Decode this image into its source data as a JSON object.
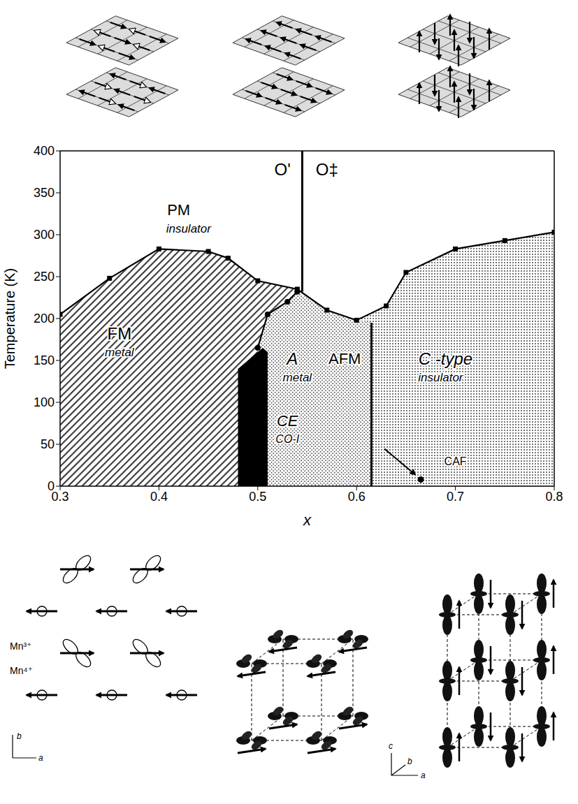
{
  "chart_data": {
    "type": "line",
    "xlabel": "x",
    "ylabel": "Temperature (K)",
    "xlim": [
      0.3,
      0.8
    ],
    "xticks": [
      0.3,
      0.4,
      0.5,
      0.6,
      0.7,
      0.8
    ],
    "ylim": [
      0,
      400
    ],
    "yticks": [
      0,
      50,
      100,
      150,
      200,
      250,
      300,
      350,
      400
    ],
    "grid": false,
    "series": [
      {
        "type": "area",
        "color": "#3a3a3a",
        "x": [
          0.3,
          0.35,
          0.4,
          0.45,
          0.47,
          0.5,
          0.54
        ],
        "values": [
          205,
          248,
          283,
          280,
          272,
          245,
          235
        ]
      },
      {
        "type": "area",
        "color": "#4a4a4a",
        "x": [
          0.6,
          0.63,
          0.65,
          0.7,
          0.75,
          0.8
        ],
        "values": [
          198,
          215,
          255,
          283,
          293,
          303
        ]
      },
      {
        "type": "area",
        "color": "#4a4a4a",
        "x": [
          0.5,
          0.51,
          0.53,
          0.54,
          0.57,
          0.6,
          0.615
        ],
        "values": [
          165,
          205,
          220,
          232,
          210,
          198,
          195
        ]
      },
      {
        "type": "area",
        "color": "#000000",
        "x": [
          0.48,
          0.505,
          0.51
        ],
        "values": [
          140,
          165,
          160
        ]
      },
      {
        "type": "line",
        "color": "#000000",
        "marker": "square",
        "x": [
          0.3,
          0.35,
          0.4,
          0.45,
          0.47,
          0.5,
          0.54,
          0.57,
          0.6,
          0.63,
          0.65,
          0.7,
          0.75,
          0.8
        ],
        "values": [
          205,
          248,
          283,
          280,
          272,
          245,
          235,
          210,
          198,
          215,
          255,
          283,
          293,
          303
        ]
      },
      {
        "type": "line",
        "color": "#000000",
        "marker": "circle",
        "x": [
          0.5,
          0.51,
          0.53,
          0.54
        ],
        "values": [
          165,
          205,
          220,
          232
        ]
      },
      {
        "type": "line",
        "color": "#000000",
        "marker": "none",
        "x": [
          0.545,
          0.545
        ],
        "values": [
          232,
          400
        ]
      },
      {
        "type": "line",
        "color": "#000000",
        "marker": "none",
        "x": [
          0.615,
          0.615
        ],
        "values": [
          0,
          195
        ]
      },
      {
        "type": "scatter",
        "color": "#000000",
        "marker": "circle",
        "x": [
          0.665
        ],
        "values": [
          8
        ]
      }
    ],
    "annotations": [
      {
        "text": "O'",
        "x": 0.525,
        "y": 378
      },
      {
        "text": "O‡",
        "x": 0.57,
        "y": 378
      },
      {
        "text": "PM",
        "x": 0.42,
        "y": 330
      },
      {
        "text": "insulator",
        "x": 0.43,
        "y": 307
      },
      {
        "text": "FM",
        "x": 0.36,
        "y": 182
      },
      {
        "text": "metal",
        "x": 0.36,
        "y": 160
      },
      {
        "text": "A",
        "x": 0.535,
        "y": 152
      },
      {
        "text": "metal",
        "x": 0.54,
        "y": 130
      },
      {
        "text": "AFM",
        "x": 0.588,
        "y": 152
      },
      {
        "text": "C -type",
        "x": 0.69,
        "y": 152
      },
      {
        "text": "insulator",
        "x": 0.685,
        "y": 130
      },
      {
        "text": "CE",
        "x": 0.53,
        "y": 78
      },
      {
        "text": "CO-I",
        "x": 0.53,
        "y": 56
      },
      {
        "text": "CAF",
        "x": 0.7,
        "y": 30
      }
    ]
  },
  "diagrams": {
    "bottom_left": {
      "labels": [
        "Mn³⁺",
        "Mn⁴⁺"
      ],
      "axes": [
        "b",
        "a"
      ]
    },
    "bottom_middle": {
      "axes": [
        "c",
        "b",
        "a"
      ]
    }
  }
}
